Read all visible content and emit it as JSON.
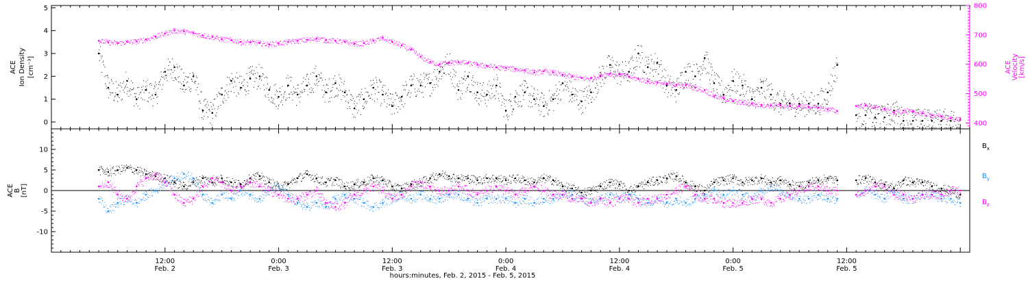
{
  "chart_data": [
    {
      "type": "scatter",
      "panel": "plasma",
      "ylabel_left": [
        "ACE",
        "Ion Density",
        "[cm⁻³]"
      ],
      "ylabel_right": [
        "ACE",
        "Velocity",
        "[km/s]"
      ],
      "ylim_left": [
        -0.3,
        5.1
      ],
      "ylim_right": [
        380,
        800
      ],
      "yticks_left": [
        "0",
        "1",
        "2",
        "3",
        "4",
        "5"
      ],
      "yticks_right": [
        "400",
        "500",
        "600",
        "700",
        "800"
      ],
      "series": [
        {
          "color": "#000000",
          "axis": "left",
          "hours": [
            -1,
            0,
            1,
            2,
            3,
            4,
            5,
            6,
            7,
            8,
            9,
            10,
            11,
            12,
            13,
            14,
            15,
            16,
            17,
            18,
            19,
            20,
            21,
            22,
            23,
            24,
            25,
            26,
            27,
            28,
            29,
            30,
            31,
            32,
            33,
            34,
            35,
            36,
            37,
            38,
            39,
            40,
            41,
            42,
            43,
            44,
            45,
            46,
            47,
            48,
            49,
            50,
            51,
            52,
            53,
            54,
            55,
            56,
            57,
            58,
            59,
            60,
            61,
            62,
            63,
            64,
            65,
            66,
            67,
            68,
            69,
            70,
            71,
            72,
            73,
            74,
            75,
            76,
            77,
            78,
            79,
            80,
            81,
            82,
            83,
            84,
            85,
            86,
            87,
            88,
            89,
            90
          ],
          "values": [
            3.0,
            1.5,
            1.2,
            1.8,
            1.0,
            1.4,
            1.2,
            2.2,
            2.4,
            1.6,
            2.0,
            0.5,
            0.4,
            1.2,
            1.8,
            1.5,
            1.9,
            2.0,
            1.4,
            1.1,
            1.6,
            1.2,
            1.6,
            2.0,
            1.3,
            1.7,
            1.3,
            0.6,
            1.0,
            1.5,
            1.2,
            0.7,
            1.1,
            1.6,
            1.6,
            1.7,
            2.2,
            2.6,
            1.4,
            2.0,
            1.3,
            1.2,
            1.6,
            0.5,
            1.1,
            1.3,
            1.0,
            0.7,
            1.0,
            1.7,
            1.2,
            0.9,
            1.3,
            2.0,
            2.5,
            2.1,
            2.2,
            3.0,
            2.4,
            2.6,
            1.6,
            1.4,
            2.2,
            2.0,
            2.8,
            1.7,
            1.2,
            1.8,
            1.6,
            1.0,
            1.5,
            1.2,
            0.8,
            0.8,
            0.8,
            0.8,
            0.8,
            1.3,
            2.5,
            null,
            0.3,
            0.3,
            0.2,
            0.2,
            0.5,
            0.05,
            0.05,
            0.05,
            0.05,
            0.05,
            0.05,
            0.1
          ]
        },
        {
          "color": "#ff00ff",
          "axis": "right",
          "hours": [
            -1,
            0,
            1,
            2,
            3,
            4,
            5,
            6,
            7,
            8,
            9,
            10,
            11,
            12,
            13,
            14,
            15,
            16,
            17,
            18,
            19,
            20,
            21,
            22,
            23,
            24,
            25,
            26,
            27,
            28,
            29,
            30,
            31,
            32,
            33,
            34,
            35,
            36,
            37,
            38,
            39,
            40,
            41,
            42,
            43,
            44,
            45,
            46,
            47,
            48,
            49,
            50,
            51,
            52,
            53,
            54,
            55,
            56,
            57,
            58,
            59,
            60,
            61,
            62,
            63,
            64,
            65,
            66,
            67,
            68,
            69,
            70,
            71,
            72,
            73,
            74,
            75,
            76,
            77,
            78,
            79,
            80,
            81,
            82,
            83,
            84,
            85,
            86,
            87,
            88,
            89,
            90
          ],
          "values": [
            680,
            675,
            672,
            676,
            678,
            685,
            695,
            705,
            715,
            712,
            706,
            698,
            693,
            686,
            682,
            676,
            675,
            672,
            668,
            672,
            676,
            680,
            683,
            688,
            682,
            680,
            676,
            670,
            672,
            680,
            690,
            676,
            664,
            650,
            625,
            608,
            600,
            605,
            608,
            604,
            598,
            595,
            590,
            588,
            584,
            580,
            572,
            576,
            572,
            564,
            558,
            553,
            552,
            562,
            568,
            566,
            558,
            550,
            542,
            538,
            533,
            530,
            528,
            520,
            512,
            492,
            484,
            474,
            470,
            466,
            462,
            460,
            459,
            458,
            458,
            455,
            452,
            447,
            440,
            null,
            458,
            460,
            454,
            448,
            435,
            442,
            438,
            433,
            426,
            423,
            416,
            412
          ]
        }
      ]
    },
    {
      "type": "scatter",
      "panel": "magnetic field",
      "ylabel_left": [
        "ACE",
        "B",
        "[nT]"
      ],
      "ylim": [
        -15,
        15
      ],
      "yticks": [
        "10",
        "5",
        "0",
        "-5",
        "-10"
      ],
      "series": [
        {
          "name": "Bx",
          "color": "#000000",
          "hours": [
            -1,
            0,
            1,
            2,
            3,
            4,
            5,
            6,
            7,
            8,
            9,
            10,
            11,
            12,
            13,
            14,
            15,
            16,
            17,
            18,
            19,
            20,
            21,
            22,
            23,
            24,
            25,
            26,
            27,
            28,
            29,
            30,
            31,
            32,
            33,
            34,
            35,
            36,
            37,
            38,
            39,
            40,
            41,
            42,
            43,
            44,
            45,
            46,
            47,
            48,
            49,
            50,
            51,
            52,
            53,
            54,
            55,
            56,
            57,
            58,
            59,
            60,
            61,
            62,
            63,
            64,
            65,
            66,
            67,
            68,
            69,
            70,
            71,
            72,
            73,
            74,
            75,
            76,
            77,
            78,
            79,
            80,
            81,
            82,
            83,
            84,
            85,
            86,
            87,
            88,
            89,
            90
          ],
          "values": [
            5,
            4.5,
            5,
            5.5,
            5,
            4,
            3.5,
            3,
            2,
            1,
            2,
            3,
            2,
            3,
            2,
            1.5,
            3,
            3.5,
            2,
            1,
            1.5,
            3,
            4,
            3,
            2,
            2.5,
            1,
            1.5,
            2,
            3,
            2.5,
            1,
            0.5,
            1.5,
            2,
            3,
            4,
            3.5,
            3,
            3,
            2.5,
            3,
            3,
            2.5,
            3,
            2.5,
            2,
            3,
            2.5,
            1,
            0.5,
            -0.5,
            0,
            1,
            2,
            1.5,
            0,
            1,
            2,
            2.5,
            3,
            3.5,
            2,
            1,
            0,
            2,
            2.5,
            3,
            2,
            2.5,
            3,
            2,
            2.5,
            1.5,
            1,
            2,
            2.5,
            3,
            2.5,
            null,
            2.5,
            3,
            2,
            1.5,
            0.5,
            2.5,
            2,
            2,
            1,
            0.5,
            0,
            -1
          ]
        },
        {
          "name": "By",
          "color": "#1e90ff",
          "hours": [
            -1,
            0,
            1,
            2,
            3,
            4,
            5,
            6,
            7,
            8,
            9,
            10,
            11,
            12,
            13,
            14,
            15,
            16,
            17,
            18,
            19,
            20,
            21,
            22,
            23,
            24,
            25,
            26,
            27,
            28,
            29,
            30,
            31,
            32,
            33,
            34,
            35,
            36,
            37,
            38,
            39,
            40,
            41,
            42,
            43,
            44,
            45,
            46,
            47,
            48,
            49,
            50,
            51,
            52,
            53,
            54,
            55,
            56,
            57,
            58,
            59,
            60,
            61,
            62,
            63,
            64,
            65,
            66,
            67,
            68,
            69,
            70,
            71,
            72,
            73,
            74,
            75,
            76,
            77,
            78,
            79,
            80,
            81,
            82,
            83,
            84,
            85,
            86,
            87,
            88,
            89,
            90
          ],
          "values": [
            -2,
            -5,
            -3,
            -2,
            -3,
            -1,
            0,
            2,
            3,
            4,
            3,
            -1,
            -3,
            -1,
            -2,
            0,
            -1,
            -2,
            0,
            1,
            -1,
            -3,
            -4,
            -3,
            -4,
            -2,
            -1,
            -2,
            -3,
            -4,
            -3,
            -2,
            -1,
            -2,
            -1,
            -2,
            -2,
            -1,
            -1,
            -2,
            -3,
            -2,
            -2,
            -2,
            -3,
            -2,
            -3,
            -2,
            -2,
            -1,
            -1,
            -2,
            -3,
            -2,
            -1,
            -2,
            -1,
            -2,
            -3,
            -2,
            -3,
            -2,
            -3,
            -2,
            -1,
            0,
            -1,
            0,
            -1,
            -2,
            0,
            1,
            0,
            -1,
            -2,
            -2,
            -1,
            -2,
            -2,
            null,
            -1,
            0,
            -1,
            -2,
            0,
            -2,
            -2,
            -1,
            -1,
            -2,
            -2,
            -3
          ]
        },
        {
          "name": "Bz",
          "color": "#ff00ff",
          "hours": [
            -1,
            0,
            1,
            2,
            3,
            4,
            5,
            6,
            7,
            8,
            9,
            10,
            11,
            12,
            13,
            14,
            15,
            16,
            17,
            18,
            19,
            20,
            21,
            22,
            23,
            24,
            25,
            26,
            27,
            28,
            29,
            30,
            31,
            32,
            33,
            34,
            35,
            36,
            37,
            38,
            39,
            40,
            41,
            42,
            43,
            44,
            45,
            46,
            47,
            48,
            49,
            50,
            51,
            52,
            53,
            54,
            55,
            56,
            57,
            58,
            59,
            60,
            61,
            62,
            63,
            64,
            65,
            66,
            67,
            68,
            69,
            70,
            71,
            72,
            73,
            74,
            75,
            76,
            77,
            78,
            79,
            80,
            81,
            82,
            83,
            84,
            85,
            86,
            87,
            88,
            89,
            90
          ],
          "values": [
            1,
            2,
            -1,
            -2,
            1,
            3,
            4,
            2,
            -1,
            -3,
            -2,
            1,
            3,
            2,
            0,
            1,
            2,
            1,
            0,
            -1,
            -2,
            -2,
            -1,
            0,
            -3,
            -4,
            -3,
            -1,
            0,
            1,
            0,
            -2,
            -1,
            1,
            2,
            1,
            0,
            0,
            1,
            0,
            -1,
            0,
            1,
            0,
            -1,
            0,
            1,
            0,
            -1,
            -1,
            -2,
            -2,
            -3,
            -2,
            -3,
            -2,
            -2,
            -3,
            -2,
            -2,
            -1,
            0,
            1,
            -1,
            -2,
            -2,
            -3,
            -3,
            -3,
            -2,
            -2,
            -3,
            -2,
            -1,
            0,
            1,
            1,
            0,
            0,
            null,
            -1,
            0,
            1,
            1,
            -1,
            -1,
            -2,
            -1,
            -1,
            -1,
            0,
            0
          ]
        }
      ],
      "legend": [
        {
          "label": "B",
          "sub": "x",
          "color": "#000000"
        },
        {
          "label": "B",
          "sub": "y",
          "color": "#1e90ff"
        },
        {
          "label": "B",
          "sub": "z",
          "color": "#ff00ff"
        }
      ]
    }
  ],
  "x_axis": {
    "range_hours": [
      -6,
      91
    ],
    "tick_labels": [
      {
        "hour": 6,
        "time": "12:00",
        "day": "Feb. 2"
      },
      {
        "hour": 18,
        "time": "0:00",
        "day": "Feb. 3"
      },
      {
        "hour": 30,
        "time": "12:00",
        "day": "Feb. 3"
      },
      {
        "hour": 42,
        "time": "0:00",
        "day": "Feb. 4"
      },
      {
        "hour": 54,
        "time": "12:00",
        "day": "Feb. 4"
      },
      {
        "hour": 66,
        "time": "0:00",
        "day": "Feb. 5"
      },
      {
        "hour": 78,
        "time": "12:00",
        "day": "Feb. 5"
      }
    ],
    "title": "hours:minutes, Feb.  2, 2015 - Feb.  5, 2015"
  }
}
